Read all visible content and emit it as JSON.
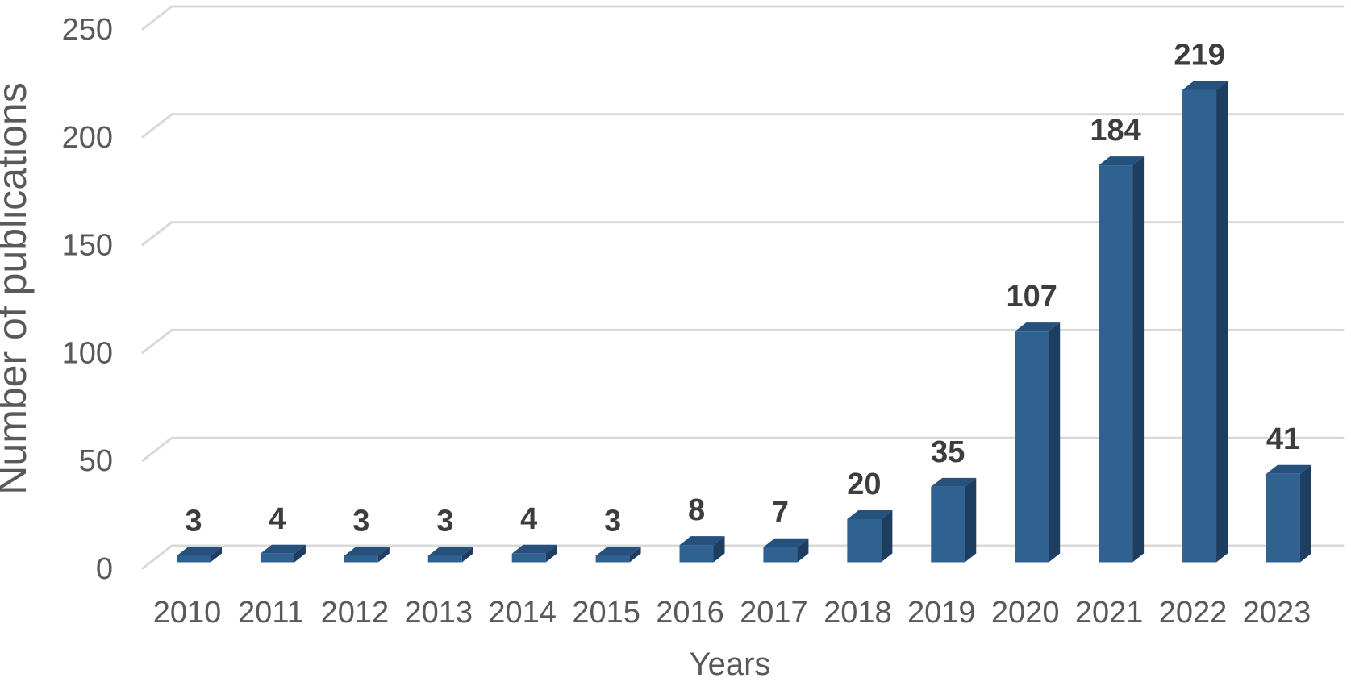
{
  "chart_data": {
    "type": "bar",
    "style": "3d-box-bars",
    "title": "",
    "xlabel": "Years",
    "ylabel": "Number of publications",
    "categories": [
      "2010",
      "2011",
      "2012",
      "2013",
      "2014",
      "2015",
      "2016",
      "2017",
      "2018",
      "2019",
      "2020",
      "2021",
      "2022",
      "2023"
    ],
    "values": [
      3,
      4,
      3,
      3,
      4,
      3,
      8,
      7,
      20,
      35,
      107,
      184,
      219,
      41
    ],
    "data_labels_shown": true,
    "yticks": [
      0,
      50,
      100,
      150,
      200,
      250
    ],
    "ylim": [
      0,
      250
    ],
    "grid": true,
    "legend_position": "none",
    "colors": {
      "bar_front": "#2f6191",
      "bar_top": "#26517d",
      "bar_side": "#1e3e61",
      "gridline": "#d9d9d9",
      "axis_text": "#595959",
      "data_label_text": "#3d3d3d",
      "background": "#ffffff"
    }
  }
}
